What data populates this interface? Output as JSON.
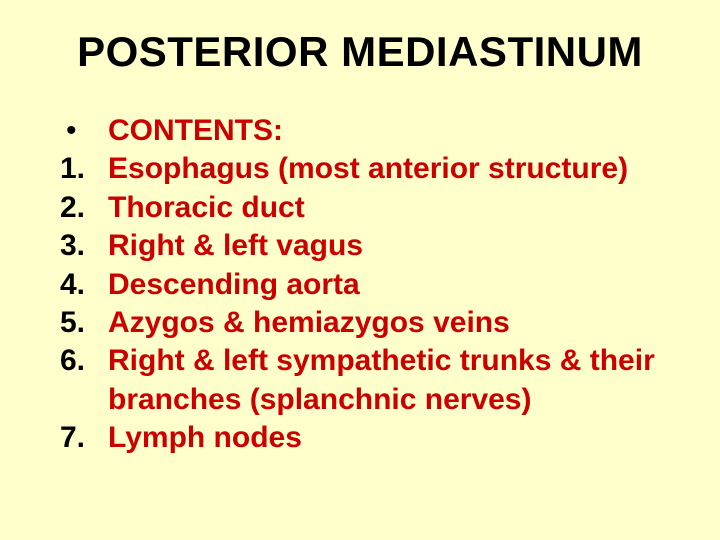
{
  "slide": {
    "title": "POSTERIOR MEDIASTINUM",
    "title_fontsize": 42,
    "title_color": "#000000",
    "background_color": "#ffffcc",
    "body_fontsize": 30,
    "marker_color": "#000000",
    "text_color": "#cc0000",
    "items": [
      {
        "marker": "•",
        "text": "CONTENTS:"
      },
      {
        "marker": "1.",
        "text": "Esophagus (most anterior structure)"
      },
      {
        "marker": "2.",
        "text": "Thoracic duct"
      },
      {
        "marker": "3.",
        "text": "Right & left vagus"
      },
      {
        "marker": "4.",
        "text": "Descending aorta"
      },
      {
        "marker": "5.",
        "text": "Azygos & hemiazygos veins"
      },
      {
        "marker": "6.",
        "text": "Right & left sympathetic trunks & their branches (splanchnic nerves)"
      },
      {
        "marker": "7.",
        "text": "Lymph nodes"
      }
    ]
  }
}
